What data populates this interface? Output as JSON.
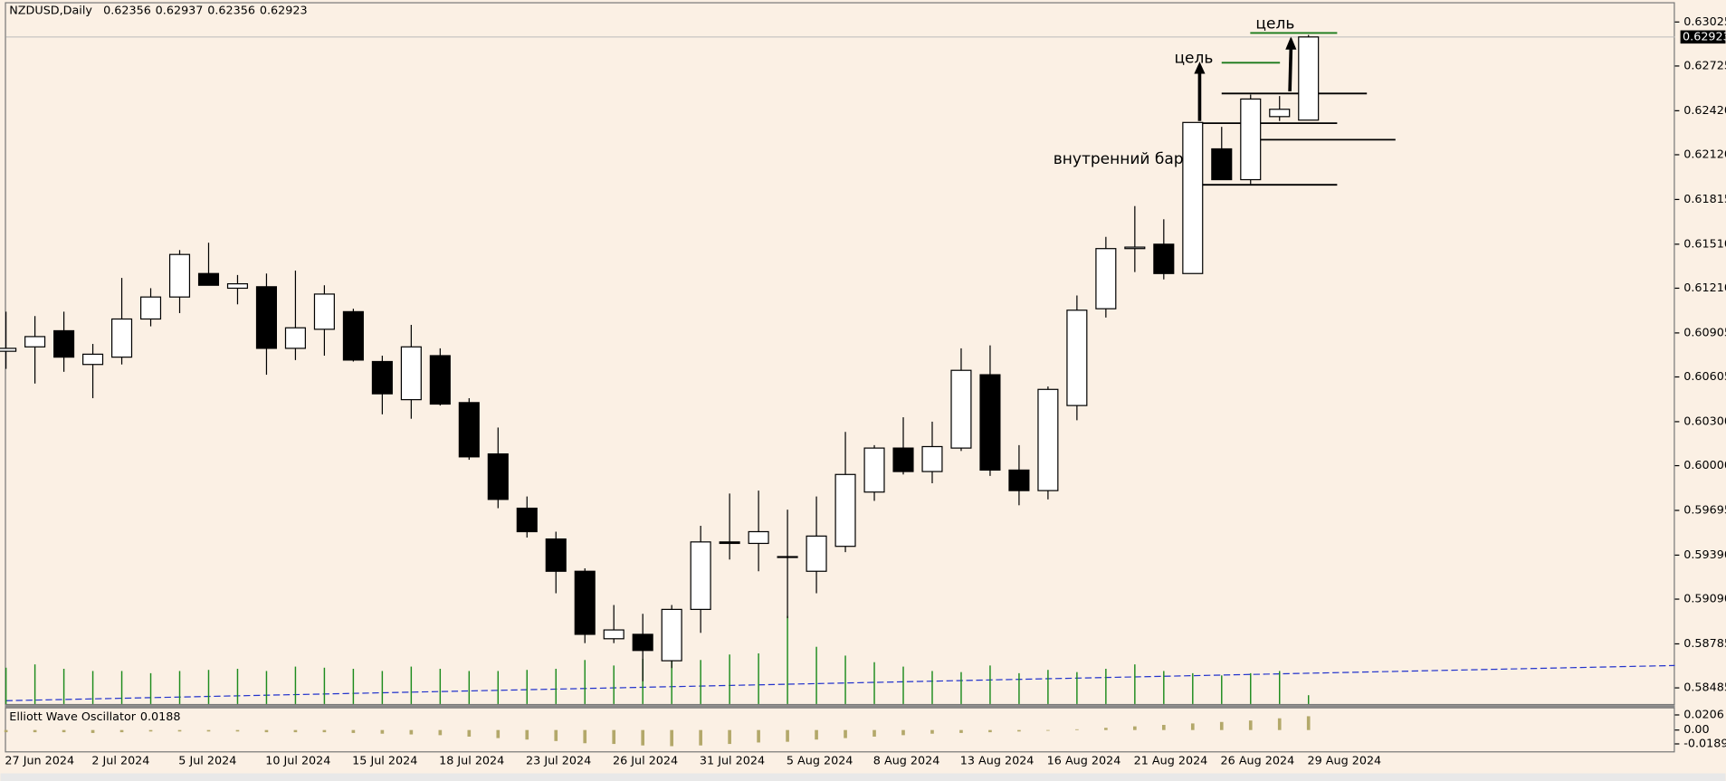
{
  "chart_data": {
    "type": "candlestick",
    "title": "NZDUSD,Daily",
    "ohlc_header": [
      0.62356,
      0.62937,
      0.62356,
      0.62923
    ],
    "categories": [
      "27 Jun 2024",
      null,
      null,
      "2 Jul 2024",
      null,
      null,
      "5 Jul 2024",
      null,
      null,
      "10 Jul 2024",
      null,
      null,
      "15 Jul 2024",
      null,
      null,
      "18 Jul 2024",
      null,
      null,
      "23 Jul 2024",
      null,
      null,
      "26 Jul 2024",
      null,
      null,
      "31 Jul 2024",
      null,
      null,
      "5 Aug 2024",
      null,
      null,
      "8 Aug 2024",
      null,
      null,
      "13 Aug 2024",
      null,
      null,
      "16 Aug 2024",
      null,
      null,
      "21 Aug 2024",
      null,
      null,
      "26 Aug 2024",
      null,
      null,
      "29 Aug 2024"
    ],
    "open": [
      0.6078,
      0.6081,
      0.6092,
      0.6069,
      0.6074,
      0.61,
      0.6115,
      0.6131,
      0.6121,
      0.6122,
      0.608,
      0.6093,
      0.6105,
      0.6071,
      0.6045,
      0.6075,
      0.6043,
      0.6008,
      0.5971,
      0.595,
      0.5928,
      0.5882,
      0.5885,
      0.5867,
      0.5902,
      0.5948,
      0.5947,
      0.5938,
      0.5928,
      0.5945,
      0.5982,
      0.6012,
      0.5996,
      0.6012,
      0.6062,
      0.5997,
      0.5983,
      0.6041,
      0.6107,
      0.6148,
      0.6151,
      0.6131,
      0.6216,
      0.6195,
      0.6238,
      0.62356
    ],
    "high": [
      0.6105,
      0.6102,
      0.6105,
      0.6083,
      0.6128,
      0.6121,
      0.6147,
      0.6152,
      0.613,
      0.6131,
      0.6133,
      0.6123,
      0.6107,
      0.6075,
      0.6096,
      0.608,
      0.6046,
      0.6026,
      0.5979,
      0.5955,
      0.593,
      0.5905,
      0.5899,
      0.5905,
      0.5959,
      0.5981,
      0.5983,
      0.597,
      0.5979,
      0.6023,
      0.6014,
      0.6033,
      0.603,
      0.608,
      0.6082,
      0.6014,
      0.6054,
      0.6116,
      0.6156,
      0.6177,
      0.6168,
      0.6234,
      0.6231,
      0.6253,
      0.6252,
      0.62937
    ],
    "low": [
      0.6066,
      0.6056,
      0.6064,
      0.6046,
      0.6069,
      0.6095,
      0.6104,
      0.6123,
      0.611,
      0.6062,
      0.6072,
      0.6075,
      0.6071,
      0.6035,
      0.6032,
      0.6041,
      0.6004,
      0.5971,
      0.5951,
      0.5913,
      0.5879,
      0.5879,
      0.5853,
      0.5862,
      0.5886,
      0.5936,
      0.5928,
      0.5896,
      0.5913,
      0.5941,
      0.5976,
      0.5994,
      0.5988,
      0.601,
      0.5993,
      0.5973,
      0.5977,
      0.6031,
      0.6101,
      0.6132,
      0.6127,
      0.6131,
      0.6195,
      0.6192,
      0.6235,
      0.62356
    ],
    "close": [
      0.608,
      0.6088,
      0.6074,
      0.6076,
      0.61,
      0.6115,
      0.6144,
      0.6123,
      0.6124,
      0.608,
      0.6094,
      0.6117,
      0.6072,
      0.6049,
      0.6081,
      0.6042,
      0.6006,
      0.5977,
      0.5955,
      0.5928,
      0.5885,
      0.5888,
      0.5874,
      0.5902,
      0.5948,
      0.5947,
      0.5955,
      0.5938,
      0.5952,
      0.5994,
      0.6012,
      0.5996,
      0.6013,
      0.6065,
      0.5997,
      0.5983,
      0.6052,
      0.6106,
      0.6148,
      0.6149,
      0.6131,
      0.6234,
      0.6195,
      0.625,
      0.6243,
      0.62923
    ],
    "up_color": "#ffffff",
    "down_color": "#000000",
    "ylim": [
      0.58375,
      0.6316
    ],
    "yticks": [
      0.63025,
      0.62725,
      {
        "value": 0.6242,
        "label": "0.62420"
      },
      {
        "value": 0.6212,
        "label": "0.62120"
      },
      0.61815,
      {
        "value": 0.6151,
        "label": "0.61510"
      },
      {
        "value": 0.6121,
        "label": "0.61210"
      },
      0.60905,
      0.60605,
      {
        "value": 0.603,
        "label": "0.60300"
      },
      {
        "value": 0.6,
        "label": "0.60000"
      },
      0.59695,
      {
        "value": 0.5939,
        "label": "0.59390"
      },
      {
        "value": 0.5909,
        "label": "0.59090"
      },
      0.58785,
      0.58485
    ],
    "volume": {
      "color": "#1e8c1e",
      "values": [
        33000,
        36000,
        32000,
        30000,
        30000,
        28000,
        30000,
        31000,
        32000,
        30000,
        34000,
        33000,
        32000,
        30000,
        34000,
        32000,
        30000,
        30000,
        31000,
        32000,
        40000,
        35000,
        41000,
        39000,
        40000,
        45000,
        46000,
        80000,
        52000,
        44000,
        38000,
        34000,
        30000,
        29000,
        35000,
        28000,
        31000,
        29000,
        32000,
        36000,
        30000,
        28000,
        26000,
        28000,
        30000,
        8000
      ]
    },
    "oscillator": {
      "name": "Elliott Wave Oscillator",
      "color": "#b3a86a",
      "values": [
        -0.003,
        -0.003,
        -0.003,
        -0.004,
        -0.003,
        -0.002,
        -0.002,
        -0.002,
        -0.002,
        -0.003,
        -0.003,
        -0.003,
        -0.004,
        -0.005,
        -0.006,
        -0.007,
        -0.009,
        -0.011,
        -0.013,
        -0.015,
        -0.018,
        -0.019,
        -0.021,
        -0.022,
        -0.021,
        -0.019,
        -0.017,
        -0.016,
        -0.013,
        -0.011,
        -0.009,
        -0.007,
        -0.005,
        -0.004,
        -0.003,
        -0.002,
        -0.001,
        0.001,
        0.003,
        0.005,
        0.007,
        0.009,
        0.011,
        0.013,
        0.016,
        0.0188
      ],
      "ylim": [
        -0.029,
        0.028
      ],
      "yticks": [
        0.0206,
        {
          "value": 0,
          "label": "0.00"
        },
        -0.0189
      ]
    },
    "annotations": [
      "цель",
      "цель",
      "внутренний бар"
    ]
  }
}
